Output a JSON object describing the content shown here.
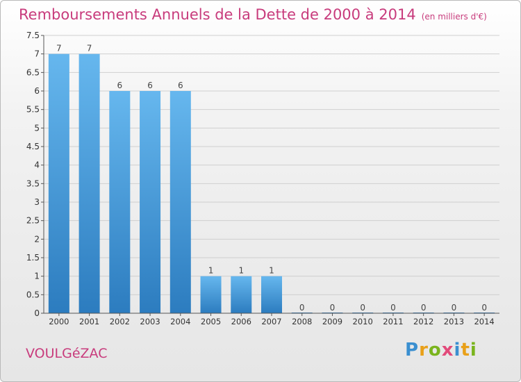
{
  "chart_data": {
    "type": "bar",
    "title": "Remboursements Annuels de la Dette de 2000 à 2014",
    "unit": "(en milliers d'€)",
    "categories": [
      "2000",
      "2001",
      "2002",
      "2003",
      "2004",
      "2005",
      "2006",
      "2007",
      "2008",
      "2009",
      "2010",
      "2011",
      "2012",
      "2013",
      "2014"
    ],
    "values": [
      7,
      7,
      6,
      6,
      6,
      1,
      1,
      1,
      0,
      0,
      0,
      0,
      0,
      0,
      0
    ],
    "ylim": [
      0,
      7.5
    ],
    "yticks": [
      "0",
      "0.5",
      "1",
      "1.5",
      "2",
      "2.5",
      "3",
      "3.5",
      "4",
      "4.5",
      "5",
      "5.5",
      "6",
      "6.5",
      "7",
      "7.5"
    ],
    "grid": true,
    "bar_color_top": "#66b7ee",
    "bar_color_bottom": "#2c7cbf"
  },
  "commune": "VOULGéZAC",
  "logo": "Proxiti"
}
